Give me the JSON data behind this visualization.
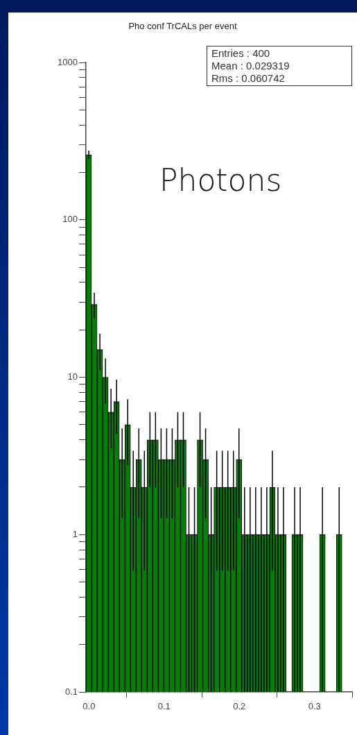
{
  "chart_data": {
    "type": "histogram",
    "title": "Pho conf TrCALs per event",
    "annotations": [
      "Entries : 400",
      "Mean : 0.029319",
      "Rms : 0.060742",
      "Photons"
    ],
    "bins": [
      -0.004,
      0.0034,
      0.0108,
      0.0182,
      0.0256,
      0.033,
      0.0404,
      0.0478,
      0.0552,
      0.0626,
      0.07,
      0.0774,
      0.0848,
      0.0922,
      0.0996,
      0.107,
      0.1144,
      0.1218,
      0.1292,
      0.1366,
      0.144,
      0.1514,
      0.1588,
      0.1662,
      0.1736,
      0.181,
      0.1884,
      0.1958,
      0.2032,
      0.2106,
      0.218,
      0.2254,
      0.2328,
      0.2402,
      0.2476,
      0.255,
      0.2624,
      0.2698,
      0.2772,
      0.2846,
      0.292,
      0.2994,
      0.3068,
      0.3142,
      0.3216,
      0.329,
      0.3364
    ],
    "values": [
      259,
      29,
      15,
      10,
      6,
      7,
      3,
      5,
      2,
      3,
      2,
      4,
      4,
      3,
      3,
      3,
      4,
      4,
      1,
      1,
      4,
      3,
      1,
      2,
      2,
      2,
      2,
      3,
      1,
      1,
      1,
      1,
      1,
      2,
      1,
      1,
      null,
      1,
      1,
      null,
      null,
      null,
      1,
      null,
      null,
      1
    ],
    "errors": [
      16.09,
      5.39,
      3.87,
      3.16,
      2.45,
      2.65,
      1.73,
      2.24,
      1.41,
      1.73,
      1.41,
      2,
      2,
      1.73,
      1.73,
      1.73,
      2,
      2,
      [
        0.1,
        2
      ],
      [
        0.1,
        2
      ],
      2,
      1.73,
      [
        0.1,
        2
      ],
      1.41,
      1.41,
      1.41,
      1.41,
      1.73,
      [
        0.1,
        2
      ],
      [
        0.1,
        2
      ],
      [
        0.1,
        2
      ],
      [
        0.1,
        2
      ],
      [
        0.1,
        2
      ],
      1.41,
      [
        0.1,
        2
      ],
      [
        0.1,
        2
      ],
      null,
      [
        0.1,
        2
      ],
      [
        0.1,
        2
      ],
      null,
      null,
      null,
      [
        0.1,
        2
      ],
      null,
      null,
      [
        0.1,
        2
      ]
    ],
    "color": "#008000",
    "log": "y",
    "xlim": [
      -0.004,
      0.35
    ],
    "xticks": [
      {
        "value": 0,
        "label": "0.0"
      },
      {
        "value": 0.1,
        "label": "0.1"
      },
      {
        "value": 0.2,
        "label": "0.2"
      },
      {
        "value": 0.3,
        "label": "0.3"
      }
    ],
    "ylim": [
      0.1,
      1000
    ],
    "yticks": [
      0.1,
      {
        "value": 0.2,
        "label": null
      },
      {
        "value": 0.3,
        "label": null
      },
      {
        "value": 0.4,
        "label": null
      },
      {
        "value": 0.5,
        "label": null
      },
      {
        "value": 0.6,
        "label": null
      },
      {
        "value": 0.7,
        "label": null
      },
      {
        "value": 0.8,
        "label": null
      },
      {
        "value": 0.9,
        "label": null
      },
      1,
      {
        "value": 2,
        "label": null
      },
      {
        "value": 3,
        "label": null
      },
      {
        "value": 4,
        "label": null
      },
      {
        "value": 5,
        "label": null
      },
      {
        "value": 6,
        "label": null
      },
      {
        "value": 7,
        "label": null
      },
      {
        "value": 8,
        "label": null
      },
      {
        "value": 9,
        "label": null
      },
      10,
      {
        "value": 20,
        "label": null
      },
      {
        "value": 30,
        "label": null
      },
      {
        "value": 40,
        "label": null
      },
      {
        "value": 50,
        "label": null
      },
      {
        "value": 60,
        "label": null
      },
      {
        "value": 70,
        "label": null
      },
      {
        "value": 80,
        "label": null
      },
      {
        "value": 90,
        "label": null
      },
      100,
      {
        "value": 200,
        "label": null
      },
      {
        "value": 300,
        "label": null
      },
      {
        "value": 400,
        "label": null
      },
      {
        "value": 500,
        "label": null
      },
      {
        "value": 600,
        "label": null
      },
      {
        "value": 700,
        "label": null
      },
      {
        "value": 800,
        "label": null
      },
      {
        "value": 900,
        "label": null
      },
      1000
    ]
  }
}
